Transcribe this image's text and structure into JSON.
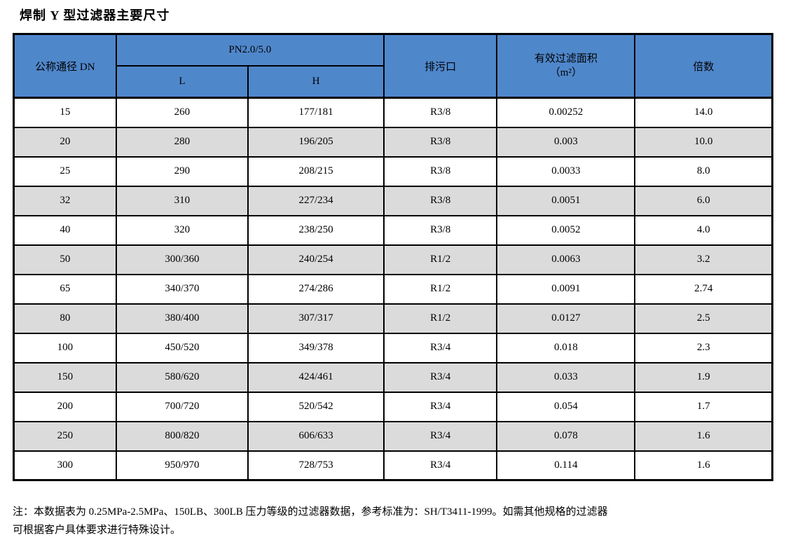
{
  "title": "焊制 Y 型过滤器主要尺寸",
  "table": {
    "header": {
      "col_dn": "公称通径 DN",
      "col_pn": "PN2.0/5.0",
      "col_l": "L",
      "col_h": "H",
      "col_drain": "排污口",
      "col_area_line1": "有效过滤面积",
      "col_area_line2": "（m²）",
      "col_ratio": "倍数"
    },
    "rows": [
      [
        "15",
        "260",
        "177/181",
        "R3/8",
        "0.00252",
        "14.0"
      ],
      [
        "20",
        "280",
        "196/205",
        "R3/8",
        "0.003",
        "10.0"
      ],
      [
        "25",
        "290",
        "208/215",
        "R3/8",
        "0.0033",
        "8.0"
      ],
      [
        "32",
        "310",
        "227/234",
        "R3/8",
        "0.0051",
        "6.0"
      ],
      [
        "40",
        "320",
        "238/250",
        "R3/8",
        "0.0052",
        "4.0"
      ],
      [
        "50",
        "300/360",
        "240/254",
        "R1/2",
        "0.0063",
        "3.2"
      ],
      [
        "65",
        "340/370",
        "274/286",
        "R1/2",
        "0.0091",
        "2.74"
      ],
      [
        "80",
        "380/400",
        "307/317",
        "R1/2",
        "0.0127",
        "2.5"
      ],
      [
        "100",
        "450/520",
        "349/378",
        "R3/4",
        "0.018",
        "2.3"
      ],
      [
        "150",
        "580/620",
        "424/461",
        "R3/4",
        "0.033",
        "1.9"
      ],
      [
        "200",
        "700/720",
        "520/542",
        "R3/4",
        "0.054",
        "1.7"
      ],
      [
        "250",
        "800/820",
        "606/633",
        "R3/4",
        "0.078",
        "1.6"
      ],
      [
        "300",
        "950/970",
        "728/753",
        "R3/4",
        "0.114",
        "1.6"
      ]
    ]
  },
  "notes": {
    "line1": "注：本数据表为 0.25MPa-2.5MPa、150LB、300LB 压力等级的过滤器数据，参考标准为：SH/T3411-1999。如需其他规格的过滤器",
    "line2": "可根据客户具体要求进行特殊设计。"
  },
  "colors": {
    "header_bg": "#4F87CB",
    "alt_row_bg": "#DBDBDB",
    "border": "#000000",
    "text": "#000000"
  }
}
